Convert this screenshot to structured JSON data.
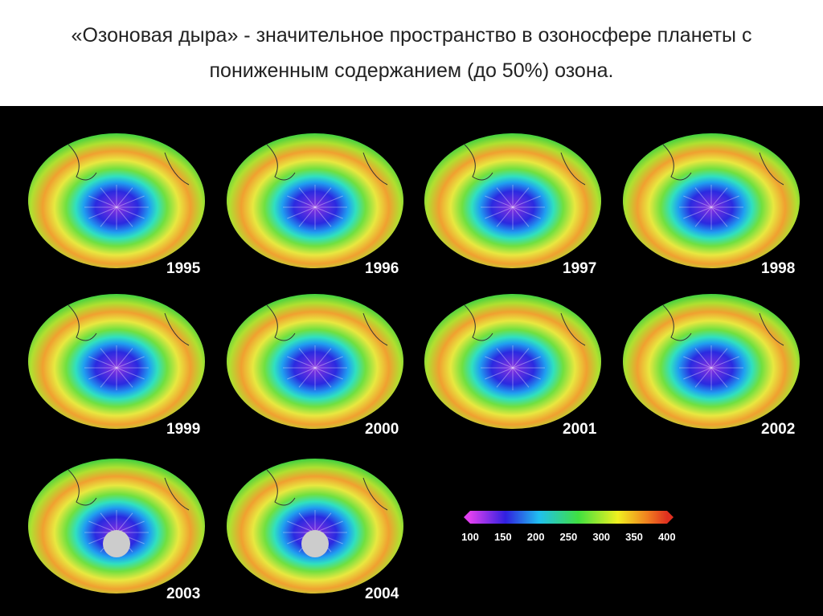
{
  "title": {
    "lines": [
      "«Озоновая дыра» - значительное пространство в озоносфере планеты с",
      "пониженным содержанием (до 50%) озона."
    ]
  },
  "maps": [
    "1995",
    "1996",
    "1997",
    "1998",
    "1999",
    "2000",
    "2001",
    "2002",
    "2003",
    "2004"
  ],
  "legend": {
    "ticks": [
      "100",
      "150",
      "200",
      "250",
      "300",
      "350",
      "400"
    ]
  }
}
